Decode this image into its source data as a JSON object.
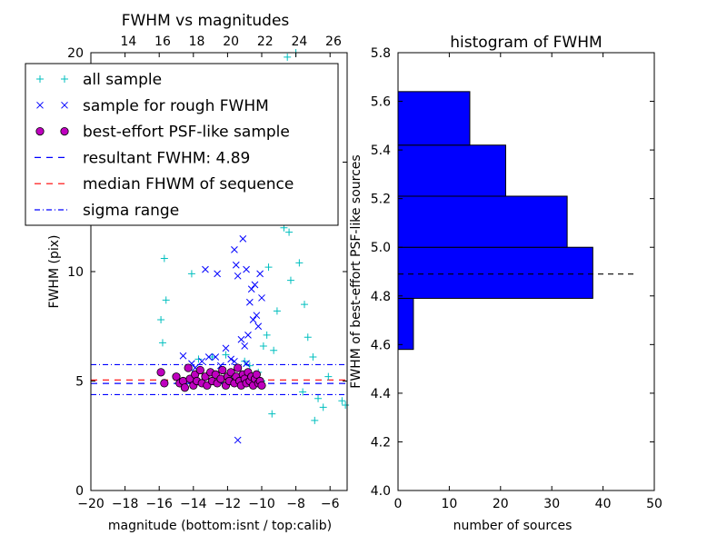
{
  "colors": {
    "all_sample": "#00bfbf",
    "rough_sample": "#0000ff",
    "best_sample_face": "#bf00bf",
    "resultant_line": "#0000ff",
    "median_line": "#ff0000",
    "sigma_line": "#0000ff",
    "hist_bar": "#0000ff",
    "hist_median": "#000000"
  },
  "chart_data": [
    {
      "type": "scatter",
      "title": "FWHM vs magnitudes",
      "xlabel": "magnitude (bottom:isnt / top:calib)",
      "ylabel": "FWHM (pix)",
      "xlim": [
        -20,
        -5
      ],
      "ylim": [
        0,
        20
      ],
      "x_ticks": [
        "−20",
        "−18",
        "−16",
        "−14",
        "−12",
        "−10",
        "−8",
        "−6"
      ],
      "x_tick_values": [
        -20,
        -18,
        -16,
        -14,
        -12,
        -10,
        -8,
        -6
      ],
      "y_ticks": [
        "0",
        "5",
        "10",
        "15",
        "20"
      ],
      "y_tick_values": [
        0,
        5,
        10,
        15,
        20
      ],
      "top_ticks": [
        "14",
        "16",
        "18",
        "20",
        "22",
        "24",
        "26"
      ],
      "top_tick_values": [
        -17.8,
        -15.8,
        -13.8,
        -11.8,
        -9.8,
        -7.8,
        -5.8
      ],
      "legend": {
        "placement": "top-left",
        "entries": [
          {
            "label": "all sample",
            "marker": "plus"
          },
          {
            "label": "sample for rough FWHM",
            "marker": "x"
          },
          {
            "label": "best-effort PSF-like sample",
            "marker": "circle"
          },
          {
            "label": "resultant FWHM: 4.89",
            "marker": "dashed-blue"
          },
          {
            "label": "median FHWM of sequence",
            "marker": "dashed-red"
          },
          {
            "label": "sigma range",
            "marker": "dashdot-blue"
          }
        ]
      },
      "lines": {
        "resultant_fwhm": 4.89,
        "median_fwhm": 5.05,
        "sigma_range": [
          4.38,
          5.75
        ]
      },
      "series": [
        {
          "name": "all sample",
          "points": [
            [
              -15.9,
              7.8
            ],
            [
              -15.8,
              6.75
            ],
            [
              -15.7,
              10.6
            ],
            [
              -15.6,
              8.7
            ],
            [
              -14.1,
              9.9
            ],
            [
              -13.7,
              6.0
            ],
            [
              -12.9,
              6.1
            ],
            [
              -12.1,
              6.2
            ],
            [
              -11.0,
              5.9
            ],
            [
              -10.7,
              5.7
            ],
            [
              -10.2,
              5.4
            ],
            [
              -9.9,
              6.6
            ],
            [
              -9.7,
              7.1
            ],
            [
              -9.4,
              3.5
            ],
            [
              -9.6,
              10.2
            ],
            [
              -9.5,
              12.5
            ],
            [
              -9.2,
              14.0
            ],
            [
              -9.0,
              16.0
            ],
            [
              -8.9,
              18.5
            ],
            [
              -8.7,
              12.0
            ],
            [
              -8.5,
              19.8
            ],
            [
              -8.4,
              11.8
            ],
            [
              -8.3,
              9.6
            ],
            [
              -8.0,
              20.0
            ],
            [
              -7.8,
              10.4
            ],
            [
              -7.5,
              8.5
            ],
            [
              -7.3,
              7.0
            ],
            [
              -7.0,
              6.1
            ],
            [
              -6.7,
              4.2
            ],
            [
              -6.4,
              3.8
            ],
            [
              -6.1,
              5.2
            ],
            [
              -5.3,
              4.1
            ],
            [
              -5.1,
              3.9
            ],
            [
              -6.9,
              3.2
            ],
            [
              -7.6,
              4.5
            ],
            [
              -8.2,
              15.1
            ],
            [
              -8.6,
              13.2
            ],
            [
              -9.1,
              8.2
            ],
            [
              -9.3,
              6.4
            ],
            [
              -10.0,
              5.0
            ]
          ]
        },
        {
          "name": "sample for rough FWHM",
          "points": [
            [
              -14.6,
              6.15
            ],
            [
              -14.1,
              5.8
            ],
            [
              -13.9,
              5.6
            ],
            [
              -13.3,
              10.1
            ],
            [
              -13.1,
              6.1
            ],
            [
              -12.6,
              9.9
            ],
            [
              -12.4,
              5.7
            ],
            [
              -12.1,
              6.5
            ],
            [
              -11.8,
              6.0
            ],
            [
              -11.6,
              11.0
            ],
            [
              -11.5,
              10.3
            ],
            [
              -11.4,
              9.8
            ],
            [
              -11.2,
              6.9
            ],
            [
              -11.1,
              11.5
            ],
            [
              -10.9,
              10.1
            ],
            [
              -10.8,
              7.1
            ],
            [
              -10.7,
              8.6
            ],
            [
              -10.6,
              9.2
            ],
            [
              -10.5,
              7.8
            ],
            [
              -10.4,
              9.4
            ],
            [
              -10.3,
              8.0
            ],
            [
              -10.2,
              7.5
            ],
            [
              -10.1,
              9.9
            ],
            [
              -10.0,
              8.8
            ],
            [
              -11.0,
              6.6
            ],
            [
              -10.9,
              5.8
            ],
            [
              -11.6,
              5.9
            ],
            [
              -11.4,
              2.3
            ],
            [
              -12.7,
              6.1
            ],
            [
              -13.5,
              5.9
            ]
          ]
        },
        {
          "name": "best-effort PSF-like sample",
          "points": [
            [
              -15.9,
              5.4
            ],
            [
              -15.7,
              4.9
            ],
            [
              -15.0,
              5.2
            ],
            [
              -14.8,
              4.9
            ],
            [
              -14.6,
              5.0
            ],
            [
              -14.5,
              4.7
            ],
            [
              -14.3,
              5.6
            ],
            [
              -14.2,
              5.1
            ],
            [
              -14.0,
              4.8
            ],
            [
              -13.9,
              5.3
            ],
            [
              -13.8,
              5.0
            ],
            [
              -13.6,
              5.5
            ],
            [
              -13.5,
              4.9
            ],
            [
              -13.3,
              5.2
            ],
            [
              -13.2,
              4.8
            ],
            [
              -13.0,
              5.4
            ],
            [
              -12.9,
              5.0
            ],
            [
              -12.7,
              5.3
            ],
            [
              -12.6,
              4.9
            ],
            [
              -12.4,
              5.1
            ],
            [
              -12.3,
              5.5
            ],
            [
              -12.1,
              4.8
            ],
            [
              -12.0,
              5.2
            ],
            [
              -11.9,
              5.0
            ],
            [
              -11.8,
              5.4
            ],
            [
              -11.6,
              4.9
            ],
            [
              -11.5,
              5.2
            ],
            [
              -11.4,
              5.6
            ],
            [
              -11.3,
              5.0
            ],
            [
              -11.2,
              4.8
            ],
            [
              -11.1,
              5.3
            ],
            [
              -11.0,
              5.1
            ],
            [
              -10.9,
              4.9
            ],
            [
              -10.8,
              5.4
            ],
            [
              -10.7,
              5.0
            ],
            [
              -10.6,
              5.2
            ],
            [
              -10.5,
              4.8
            ],
            [
              -10.4,
              5.1
            ],
            [
              -10.3,
              5.3
            ],
            [
              -10.2,
              4.9
            ],
            [
              -10.1,
              5.0
            ],
            [
              -10.0,
              4.8
            ]
          ]
        }
      ]
    },
    {
      "type": "bar",
      "orientation": "horizontal",
      "title": "histogram of FWHM",
      "xlabel": "number of sources",
      "ylabel": "FWHM of best-effort PSF-like sources",
      "xlim": [
        0,
        50
      ],
      "ylim": [
        4.0,
        5.8
      ],
      "x_ticks": [
        "0",
        "10",
        "20",
        "30",
        "40",
        "50"
      ],
      "x_tick_values": [
        0,
        10,
        20,
        30,
        40,
        50
      ],
      "y_ticks": [
        "4.0",
        "4.2",
        "4.4",
        "4.6",
        "4.8",
        "5.0",
        "5.2",
        "5.4",
        "5.6",
        "5.8"
      ],
      "y_tick_values": [
        4.0,
        4.2,
        4.4,
        4.6,
        4.8,
        5.0,
        5.2,
        5.4,
        5.6,
        5.8
      ],
      "bins": [
        {
          "low": 4.58,
          "high": 4.79,
          "count": 3
        },
        {
          "low": 4.79,
          "high": 5.0,
          "count": 38
        },
        {
          "low": 5.0,
          "high": 5.21,
          "count": 33
        },
        {
          "low": 5.21,
          "high": 5.42,
          "count": 21
        },
        {
          "low": 5.42,
          "high": 5.64,
          "count": 14
        }
      ],
      "median_line": {
        "y": 4.89,
        "x_range": [
          0,
          46
        ]
      }
    }
  ]
}
